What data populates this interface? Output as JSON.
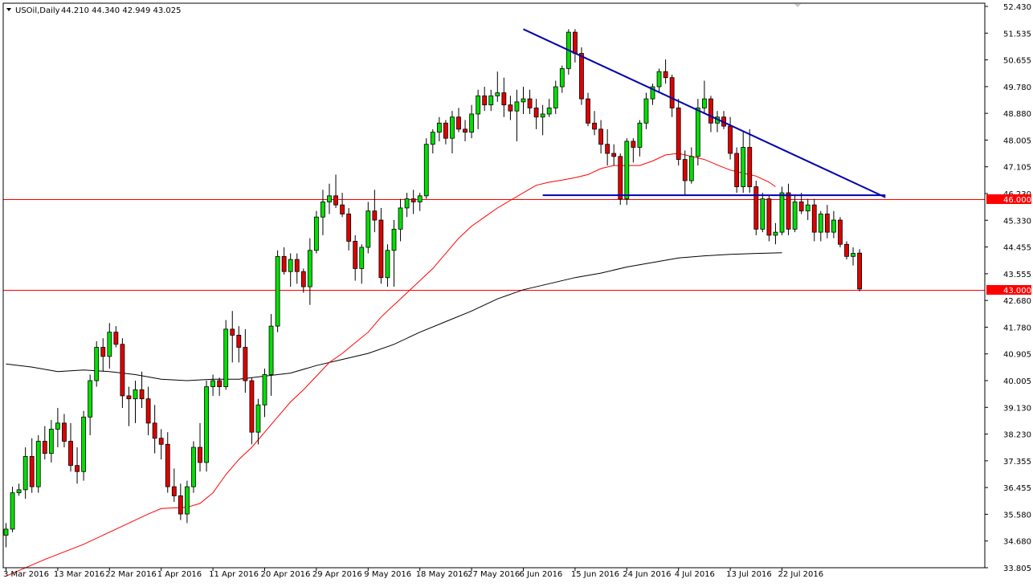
{
  "header": {
    "symbol": "USOil,Daily",
    "ohlc": "44.210 44.340 42.949 43.025"
  },
  "colors": {
    "background": "#ffffff",
    "bull_candle": "#00e000",
    "bear_candle": "#e00000",
    "candle_outline": "#000000",
    "ma_red": "#ff0000",
    "ma_black": "#000000",
    "trendline": "#0000b0",
    "hline": "#ff0000",
    "price_tag_bg": "#ff0000",
    "price_tag_text": "#ffffff"
  },
  "chart_data": {
    "type": "candlestick",
    "title": "USOil,Daily",
    "y_axis": {
      "position": "right",
      "ylim": [
        33.8,
        52.43
      ],
      "ticks": [
        "52.430",
        "51.535",
        "50.655",
        "49.780",
        "48.880",
        "48.005",
        "47.105",
        "46.230",
        "45.330",
        "44.455",
        "43.555",
        "42.680",
        "41.780",
        "40.905",
        "40.005",
        "39.130",
        "38.230",
        "37.355",
        "36.455",
        "35.580",
        "34.680",
        "33.805"
      ]
    },
    "x_axis": {
      "labels": [
        {
          "label": "3 Mar 2016",
          "bar": 0
        },
        {
          "label": "13 Mar 2016",
          "bar": 8
        },
        {
          "label": "22 Mar 2016",
          "bar": 16
        },
        {
          "label": "1 Apr 2016",
          "bar": 24
        },
        {
          "label": "11 Apr 2016",
          "bar": 32
        },
        {
          "label": "20 Apr 2016",
          "bar": 40
        },
        {
          "label": "29 Apr 2016",
          "bar": 48
        },
        {
          "label": "9 May 2016",
          "bar": 56
        },
        {
          "label": "18 May 2016",
          "bar": 64
        },
        {
          "label": "27 May 2016",
          "bar": 72
        },
        {
          "label": "6 Jun 2016",
          "bar": 80
        },
        {
          "label": "15 Jun 2016",
          "bar": 88
        },
        {
          "label": "24 Jun 2016",
          "bar": 96
        },
        {
          "label": "4 Jul 2016",
          "bar": 104
        },
        {
          "label": "13 Jul 2016",
          "bar": 112
        },
        {
          "label": "22 Jul 2016",
          "bar": 120
        }
      ]
    },
    "candles": [
      [
        34.9,
        35.3,
        34.5,
        35.1
      ],
      [
        35.1,
        36.5,
        35.0,
        36.3
      ],
      [
        36.3,
        36.6,
        36.2,
        36.4
      ],
      [
        36.4,
        37.8,
        36.1,
        37.5
      ],
      [
        37.5,
        38.1,
        36.3,
        36.5
      ],
      [
        36.5,
        38.2,
        36.3,
        38.0
      ],
      [
        38.0,
        38.5,
        37.4,
        37.6
      ],
      [
        37.6,
        38.7,
        37.3,
        38.4
      ],
      [
        38.4,
        39.1,
        37.8,
        38.6
      ],
      [
        38.6,
        38.9,
        37.8,
        38.0
      ],
      [
        38.0,
        38.6,
        37.0,
        37.2
      ],
      [
        37.2,
        37.8,
        36.6,
        37.0
      ],
      [
        37.0,
        39.0,
        36.7,
        38.8
      ],
      [
        38.8,
        40.2,
        38.2,
        40.0
      ],
      [
        40.0,
        41.3,
        39.8,
        41.1
      ],
      [
        41.1,
        41.4,
        40.3,
        40.8
      ],
      [
        40.8,
        41.9,
        40.4,
        41.6
      ],
      [
        41.6,
        41.8,
        41.1,
        41.2
      ],
      [
        41.2,
        41.4,
        39.1,
        39.5
      ],
      [
        39.5,
        39.8,
        38.5,
        39.4
      ],
      [
        39.4,
        40.0,
        38.6,
        39.7
      ],
      [
        39.7,
        40.3,
        39.1,
        39.4
      ],
      [
        39.4,
        39.8,
        38.2,
        38.6
      ],
      [
        38.6,
        39.2,
        37.6,
        38.1
      ],
      [
        38.1,
        38.4,
        37.4,
        37.9
      ],
      [
        37.9,
        38.3,
        36.3,
        36.5
      ],
      [
        36.5,
        37.1,
        36.0,
        36.2
      ],
      [
        36.2,
        36.6,
        35.4,
        35.6
      ],
      [
        35.6,
        36.7,
        35.3,
        36.5
      ],
      [
        36.5,
        38.0,
        36.3,
        37.8
      ],
      [
        37.8,
        38.6,
        37.0,
        37.3
      ],
      [
        37.3,
        40.0,
        37.0,
        39.8
      ],
      [
        39.8,
        40.2,
        39.5,
        40.0
      ],
      [
        40.0,
        40.1,
        39.5,
        39.8
      ],
      [
        39.8,
        42.0,
        39.7,
        41.7
      ],
      [
        41.7,
        42.3,
        40.6,
        41.5
      ],
      [
        41.5,
        41.8,
        40.6,
        41.1
      ],
      [
        41.1,
        41.7,
        39.6,
        40.0
      ],
      [
        40.0,
        40.1,
        37.9,
        38.3
      ],
      [
        38.3,
        39.4,
        37.9,
        39.2
      ],
      [
        39.2,
        40.4,
        38.8,
        40.2
      ],
      [
        40.2,
        42.2,
        39.5,
        41.8
      ],
      [
        41.8,
        44.3,
        41.6,
        44.1
      ],
      [
        44.1,
        44.4,
        43.5,
        43.6
      ],
      [
        43.6,
        44.2,
        43.1,
        44.0
      ],
      [
        44.0,
        44.2,
        43.2,
        43.6
      ],
      [
        43.6,
        43.7,
        42.9,
        43.1
      ],
      [
        43.1,
        44.7,
        42.5,
        44.3
      ],
      [
        44.3,
        45.6,
        44.2,
        45.4
      ],
      [
        45.4,
        46.3,
        44.8,
        45.9
      ],
      [
        45.9,
        46.5,
        45.5,
        46.1
      ],
      [
        46.1,
        46.8,
        45.7,
        45.8
      ],
      [
        45.8,
        46.2,
        45.4,
        45.5
      ],
      [
        45.5,
        45.7,
        44.3,
        44.6
      ],
      [
        44.6,
        44.8,
        43.3,
        43.7
      ],
      [
        43.7,
        44.5,
        43.2,
        44.4
      ],
      [
        44.4,
        45.9,
        44.2,
        45.6
      ],
      [
        45.6,
        46.3,
        44.9,
        45.3
      ],
      [
        45.3,
        45.7,
        43.2,
        43.4
      ],
      [
        43.4,
        44.5,
        43.1,
        44.3
      ],
      [
        44.3,
        45.3,
        43.1,
        45.0
      ],
      [
        45.0,
        46.0,
        44.6,
        45.7
      ],
      [
        45.7,
        46.2,
        45.4,
        46.0
      ],
      [
        46.0,
        46.3,
        45.5,
        45.9
      ],
      [
        45.9,
        46.2,
        45.6,
        46.1
      ],
      [
        46.1,
        48.0,
        46.0,
        47.8
      ],
      [
        47.8,
        48.3,
        47.5,
        48.2
      ],
      [
        48.2,
        48.7,
        47.9,
        48.5
      ],
      [
        48.5,
        48.6,
        47.8,
        48.0
      ],
      [
        48.0,
        48.9,
        47.5,
        48.7
      ],
      [
        48.7,
        49.0,
        48.2,
        48.3
      ],
      [
        48.3,
        48.6,
        47.9,
        48.2
      ],
      [
        48.2,
        49.1,
        48.0,
        48.8
      ],
      [
        48.8,
        49.6,
        48.3,
        49.4
      ],
      [
        49.4,
        49.7,
        48.9,
        49.1
      ],
      [
        49.1,
        49.6,
        48.9,
        49.4
      ],
      [
        49.4,
        50.2,
        49.2,
        49.5
      ],
      [
        49.5,
        50.0,
        48.7,
        49.1
      ],
      [
        49.1,
        49.4,
        48.6,
        48.9
      ],
      [
        48.9,
        49.6,
        47.9,
        49.2
      ],
      [
        49.2,
        49.7,
        48.8,
        49.3
      ],
      [
        49.3,
        49.6,
        48.8,
        49.0
      ],
      [
        49.0,
        49.3,
        48.3,
        48.7
      ],
      [
        48.7,
        49.1,
        48.1,
        48.8
      ],
      [
        48.8,
        49.3,
        48.7,
        49.0
      ],
      [
        49.0,
        49.9,
        48.8,
        49.7
      ],
      [
        49.7,
        50.4,
        49.5,
        50.3
      ],
      [
        50.3,
        51.6,
        50.1,
        51.5
      ],
      [
        51.5,
        51.6,
        50.5,
        50.8
      ],
      [
        50.8,
        51.0,
        49.1,
        49.3
      ],
      [
        49.3,
        49.5,
        48.4,
        48.5
      ],
      [
        48.5,
        48.9,
        48.1,
        48.3
      ],
      [
        48.3,
        48.6,
        47.5,
        47.8
      ],
      [
        47.8,
        48.3,
        47.1,
        47.5
      ],
      [
        47.5,
        47.8,
        47.1,
        47.4
      ],
      [
        47.4,
        47.5,
        45.8,
        46.0
      ],
      [
        46.0,
        48.0,
        45.8,
        47.9
      ],
      [
        47.9,
        48.0,
        47.2,
        47.7
      ],
      [
        47.7,
        48.6,
        47.4,
        48.5
      ],
      [
        48.5,
        49.5,
        48.3,
        49.3
      ],
      [
        49.3,
        49.8,
        49.1,
        49.7
      ],
      [
        49.7,
        50.3,
        49.5,
        50.2
      ],
      [
        50.2,
        50.6,
        49.8,
        50.0
      ],
      [
        50.0,
        50.1,
        48.7,
        49.0
      ],
      [
        49.0,
        49.3,
        47.1,
        47.3
      ],
      [
        47.3,
        47.6,
        46.1,
        46.6
      ],
      [
        46.6,
        47.7,
        46.5,
        47.4
      ],
      [
        47.4,
        49.3,
        47.1,
        49.0
      ],
      [
        49.0,
        49.9,
        48.8,
        49.3
      ],
      [
        49.3,
        49.4,
        48.2,
        48.5
      ],
      [
        48.5,
        48.9,
        48.2,
        48.7
      ],
      [
        48.7,
        48.9,
        48.3,
        48.4
      ],
      [
        48.4,
        48.7,
        47.3,
        47.5
      ],
      [
        47.5,
        47.7,
        46.2,
        46.4
      ],
      [
        46.4,
        48.2,
        46.2,
        47.7
      ],
      [
        47.7,
        48.3,
        46.2,
        46.4
      ],
      [
        46.4,
        46.6,
        44.8,
        45.0
      ],
      [
        45.0,
        46.2,
        44.9,
        46.0
      ],
      [
        46.0,
        46.1,
        44.6,
        44.8
      ],
      [
        44.8,
        45.2,
        44.5,
        44.9
      ],
      [
        44.9,
        46.4,
        44.8,
        46.2
      ],
      [
        46.2,
        46.5,
        44.8,
        45.0
      ],
      [
        45.0,
        46.1,
        44.9,
        45.9
      ],
      [
        45.9,
        46.2,
        45.5,
        45.6
      ],
      [
        45.6,
        46.0,
        45.3,
        45.8
      ],
      [
        45.8,
        46.0,
        44.6,
        44.9
      ],
      [
        44.9,
        45.6,
        44.6,
        45.5
      ],
      [
        45.5,
        45.8,
        44.7,
        44.9
      ],
      [
        44.9,
        45.6,
        44.7,
        45.3
      ],
      [
        45.3,
        45.4,
        44.4,
        44.5
      ],
      [
        44.5,
        44.6,
        44.0,
        44.1
      ],
      [
        44.1,
        44.4,
        43.8,
        44.2
      ],
      [
        44.21,
        44.34,
        42.949,
        43.025
      ]
    ],
    "ma_red": [
      [
        0,
        33.55
      ],
      [
        6,
        34.1
      ],
      [
        12,
        34.6
      ],
      [
        18,
        35.2
      ],
      [
        22,
        35.6
      ],
      [
        24,
        35.78
      ],
      [
        28,
        35.82
      ],
      [
        30,
        35.95
      ],
      [
        32,
        36.3
      ],
      [
        34,
        36.9
      ],
      [
        36,
        37.4
      ],
      [
        38,
        37.8
      ],
      [
        40,
        38.3
      ],
      [
        42,
        38.8
      ],
      [
        44,
        39.3
      ],
      [
        46,
        39.7
      ],
      [
        48,
        40.15
      ],
      [
        50,
        40.6
      ],
      [
        52,
        40.9
      ],
      [
        54,
        41.25
      ],
      [
        56,
        41.6
      ],
      [
        58,
        42.1
      ],
      [
        60,
        42.5
      ],
      [
        62,
        42.9
      ],
      [
        64,
        43.3
      ],
      [
        66,
        43.7
      ],
      [
        68,
        44.2
      ],
      [
        70,
        44.7
      ],
      [
        72,
        45.1
      ],
      [
        74,
        45.4
      ],
      [
        76,
        45.7
      ],
      [
        78,
        45.95
      ],
      [
        80,
        46.2
      ],
      [
        82,
        46.45
      ],
      [
        84,
        46.55
      ],
      [
        86,
        46.62
      ],
      [
        88,
        46.7
      ],
      [
        90,
        46.8
      ],
      [
        92,
        47.0
      ],
      [
        94,
        47.1
      ],
      [
        96,
        47.1
      ],
      [
        98,
        47.1
      ],
      [
        100,
        47.25
      ],
      [
        102,
        47.45
      ],
      [
        104,
        47.5
      ],
      [
        106,
        47.4
      ],
      [
        108,
        47.3
      ],
      [
        110,
        47.12
      ],
      [
        112,
        46.95
      ],
      [
        114,
        46.85
      ],
      [
        116,
        46.75
      ],
      [
        118,
        46.55
      ],
      [
        119,
        46.4
      ]
    ],
    "ma_black": [
      [
        0,
        40.55
      ],
      [
        4,
        40.45
      ],
      [
        8,
        40.3
      ],
      [
        12,
        40.35
      ],
      [
        16,
        40.3
      ],
      [
        20,
        40.2
      ],
      [
        24,
        40.05
      ],
      [
        28,
        40.0
      ],
      [
        32,
        40.05
      ],
      [
        36,
        40.05
      ],
      [
        40,
        40.15
      ],
      [
        44,
        40.25
      ],
      [
        48,
        40.5
      ],
      [
        52,
        40.7
      ],
      [
        56,
        40.9
      ],
      [
        60,
        41.2
      ],
      [
        64,
        41.6
      ],
      [
        68,
        41.95
      ],
      [
        72,
        42.3
      ],
      [
        76,
        42.7
      ],
      [
        80,
        43.0
      ],
      [
        84,
        43.2
      ],
      [
        88,
        43.4
      ],
      [
        92,
        43.55
      ],
      [
        96,
        43.75
      ],
      [
        100,
        43.9
      ],
      [
        104,
        44.05
      ],
      [
        108,
        44.12
      ],
      [
        112,
        44.17
      ],
      [
        116,
        44.2
      ],
      [
        120,
        44.22
      ]
    ],
    "trendlines": [
      {
        "from": [
          80,
          51.6
        ],
        "to": [
          136,
          46.05
        ]
      },
      {
        "from": [
          83,
          46.12
        ],
        "to": [
          136,
          46.12
        ]
      }
    ],
    "hlines": [
      {
        "price": 46.0,
        "label": "46.000"
      },
      {
        "price": 43.0,
        "label": "43.000"
      }
    ]
  }
}
